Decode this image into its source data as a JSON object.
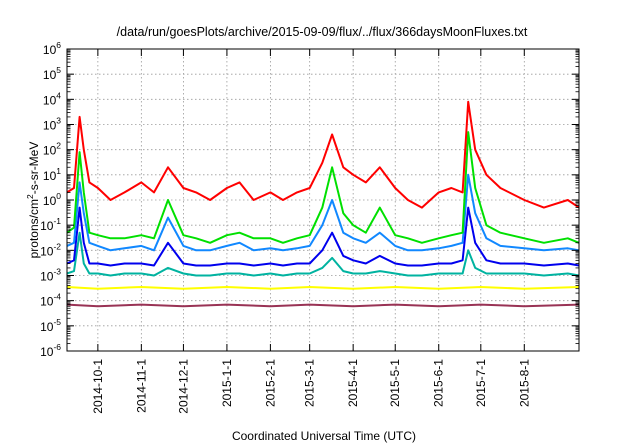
{
  "chart_data": {
    "type": "line",
    "title": "/data/run/goesPlots/archive/2015-09-09/flux/../flux/366daysMoonFluxes.txt",
    "xlabel": "Coordinated Universal Time (UTC)",
    "ylabel": {
      "base": "protons/cm",
      "sup": "2",
      "rest": "-s-sr-MeV"
    },
    "yscale": "log",
    "ylim": [
      1e-06,
      1000000.0
    ],
    "xlim": [
      "2014-09-09",
      "2015-09-09"
    ],
    "grid": true,
    "legend": "none",
    "y_ticks": [
      {
        "value": 1e-06,
        "base": "10",
        "exp": "-6"
      },
      {
        "value": 1e-05,
        "base": "10",
        "exp": "-5"
      },
      {
        "value": 0.0001,
        "base": "10",
        "exp": "-4"
      },
      {
        "value": 0.001,
        "base": "10",
        "exp": "-3"
      },
      {
        "value": 0.01,
        "base": "10",
        "exp": "-2"
      },
      {
        "value": 0.1,
        "base": "10",
        "exp": "-1"
      },
      {
        "value": 1,
        "base": "10",
        "exp": "0"
      },
      {
        "value": 10.0,
        "base": "10",
        "exp": "1"
      },
      {
        "value": 100.0,
        "base": "10",
        "exp": "2"
      },
      {
        "value": 1000.0,
        "base": "10",
        "exp": "3"
      },
      {
        "value": 10000.0,
        "base": "10",
        "exp": "4"
      },
      {
        "value": 100000.0,
        "base": "10",
        "exp": "5"
      },
      {
        "value": 1000000.0,
        "base": "10",
        "exp": "6"
      }
    ],
    "x_ticks": [
      "2014-10-1",
      "2014-11-1",
      "2014-12-1",
      "2015-1-1",
      "2015-2-1",
      "2015-3-1",
      "2015-4-1",
      "2015-5-1",
      "2015-6-1",
      "2015-7-1",
      "2015-8-1"
    ],
    "series": [
      {
        "color": "#ff0000",
        "x": [
          "2014-09-09",
          "2014-09-14",
          "2014-09-18",
          "2014-09-21",
          "2014-09-25",
          "2014-10-01",
          "2014-10-10",
          "2014-10-20",
          "2014-11-01",
          "2014-11-10",
          "2014-11-20",
          "2014-12-01",
          "2014-12-10",
          "2014-12-20",
          "2015-01-01",
          "2015-01-10",
          "2015-01-20",
          "2015-02-01",
          "2015-02-10",
          "2015-02-20",
          "2015-03-01",
          "2015-03-10",
          "2015-03-17",
          "2015-03-25",
          "2015-04-01",
          "2015-04-10",
          "2015-04-20",
          "2015-05-01",
          "2015-05-10",
          "2015-05-20",
          "2015-06-01",
          "2015-06-10",
          "2015-06-18",
          "2015-06-22",
          "2015-06-27",
          "2015-07-05",
          "2015-07-15",
          "2015-08-01",
          "2015-08-15",
          "2015-09-01",
          "2015-09-09"
        ],
        "y": [
          2,
          3,
          2000,
          100,
          5,
          3,
          1,
          2,
          5,
          2,
          20,
          3,
          2,
          1,
          3,
          5,
          1,
          2,
          1,
          2,
          3,
          30,
          400,
          20,
          10,
          5,
          20,
          3,
          1,
          0.5,
          2,
          3,
          2,
          8000,
          100,
          10,
          3,
          1,
          0.5,
          1,
          0.5
        ]
      },
      {
        "color": "#00e000",
        "x": [
          "2014-09-09",
          "2014-09-14",
          "2014-09-18",
          "2014-09-21",
          "2014-09-25",
          "2014-10-01",
          "2014-10-10",
          "2014-10-20",
          "2014-11-01",
          "2014-11-10",
          "2014-11-20",
          "2014-12-01",
          "2014-12-10",
          "2014-12-20",
          "2015-01-01",
          "2015-01-10",
          "2015-01-20",
          "2015-02-01",
          "2015-02-10",
          "2015-02-20",
          "2015-03-01",
          "2015-03-10",
          "2015-03-17",
          "2015-03-25",
          "2015-04-01",
          "2015-04-10",
          "2015-04-20",
          "2015-05-01",
          "2015-05-10",
          "2015-05-20",
          "2015-06-01",
          "2015-06-10",
          "2015-06-18",
          "2015-06-22",
          "2015-06-27",
          "2015-07-05",
          "2015-07-15",
          "2015-08-01",
          "2015-08-15",
          "2015-09-01",
          "2015-09-09"
        ],
        "y": [
          0.05,
          0.08,
          80,
          2,
          0.05,
          0.04,
          0.03,
          0.03,
          0.04,
          0.03,
          1,
          0.04,
          0.03,
          0.02,
          0.04,
          0.05,
          0.03,
          0.03,
          0.02,
          0.03,
          0.04,
          0.5,
          20,
          0.3,
          0.1,
          0.05,
          0.5,
          0.04,
          0.03,
          0.02,
          0.03,
          0.04,
          0.05,
          500,
          3,
          0.1,
          0.05,
          0.03,
          0.02,
          0.03,
          0.02
        ]
      },
      {
        "color": "#1188ff",
        "x": [
          "2014-09-09",
          "2014-09-14",
          "2014-09-18",
          "2014-09-21",
          "2014-09-25",
          "2014-10-01",
          "2014-10-10",
          "2014-10-20",
          "2014-11-01",
          "2014-11-10",
          "2014-11-20",
          "2014-12-01",
          "2014-12-10",
          "2014-12-20",
          "2015-01-01",
          "2015-01-10",
          "2015-01-20",
          "2015-02-01",
          "2015-02-10",
          "2015-02-20",
          "2015-03-01",
          "2015-03-10",
          "2015-03-17",
          "2015-03-25",
          "2015-04-01",
          "2015-04-10",
          "2015-04-20",
          "2015-05-01",
          "2015-05-10",
          "2015-05-20",
          "2015-06-01",
          "2015-06-10",
          "2015-06-18",
          "2015-06-22",
          "2015-06-27",
          "2015-07-05",
          "2015-07-15",
          "2015-08-01",
          "2015-08-15",
          "2015-09-01",
          "2015-09-09"
        ],
        "y": [
          0.015,
          0.02,
          5,
          0.3,
          0.02,
          0.015,
          0.01,
          0.012,
          0.015,
          0.01,
          0.2,
          0.015,
          0.01,
          0.01,
          0.015,
          0.02,
          0.01,
          0.012,
          0.01,
          0.012,
          0.015,
          0.1,
          1,
          0.05,
          0.03,
          0.02,
          0.05,
          0.015,
          0.01,
          0.01,
          0.012,
          0.015,
          0.02,
          10,
          0.3,
          0.03,
          0.015,
          0.012,
          0.01,
          0.012,
          0.01
        ]
      },
      {
        "color": "#0000ee",
        "x": [
          "2014-09-09",
          "2014-09-14",
          "2014-09-18",
          "2014-09-21",
          "2014-09-25",
          "2014-10-01",
          "2014-10-10",
          "2014-10-20",
          "2014-11-01",
          "2014-11-10",
          "2014-11-20",
          "2014-12-01",
          "2014-12-10",
          "2014-12-20",
          "2015-01-01",
          "2015-01-10",
          "2015-01-20",
          "2015-02-01",
          "2015-02-10",
          "2015-02-20",
          "2015-03-01",
          "2015-03-10",
          "2015-03-17",
          "2015-03-25",
          "2015-04-01",
          "2015-04-10",
          "2015-04-20",
          "2015-05-01",
          "2015-05-10",
          "2015-05-20",
          "2015-06-01",
          "2015-06-10",
          "2015-06-18",
          "2015-06-22",
          "2015-06-27",
          "2015-07-05",
          "2015-07-15",
          "2015-08-01",
          "2015-08-15",
          "2015-09-01",
          "2015-09-09"
        ],
        "y": [
          0.003,
          0.004,
          0.5,
          0.02,
          0.003,
          0.003,
          0.0025,
          0.003,
          0.003,
          0.0025,
          0.02,
          0.003,
          0.0025,
          0.0025,
          0.003,
          0.003,
          0.0025,
          0.003,
          0.0025,
          0.003,
          0.003,
          0.01,
          0.05,
          0.006,
          0.004,
          0.003,
          0.006,
          0.003,
          0.0025,
          0.0025,
          0.003,
          0.003,
          0.004,
          0.5,
          0.02,
          0.004,
          0.003,
          0.003,
          0.0025,
          0.003,
          0.0025
        ]
      },
      {
        "color": "#00b3a0",
        "x": [
          "2014-09-09",
          "2014-09-14",
          "2014-09-18",
          "2014-09-21",
          "2014-09-25",
          "2014-10-01",
          "2014-10-10",
          "2014-10-20",
          "2014-11-01",
          "2014-11-10",
          "2014-11-20",
          "2014-12-01",
          "2014-12-10",
          "2014-12-20",
          "2015-01-01",
          "2015-01-10",
          "2015-01-20",
          "2015-02-01",
          "2015-02-10",
          "2015-02-20",
          "2015-03-01",
          "2015-03-10",
          "2015-03-17",
          "2015-03-25",
          "2015-04-01",
          "2015-04-10",
          "2015-04-20",
          "2015-05-01",
          "2015-05-10",
          "2015-05-20",
          "2015-06-01",
          "2015-06-10",
          "2015-06-18",
          "2015-06-22",
          "2015-06-27",
          "2015-07-05",
          "2015-07-15",
          "2015-08-01",
          "2015-08-15",
          "2015-09-01",
          "2015-09-09"
        ],
        "y": [
          0.0012,
          0.0015,
          0.05,
          0.003,
          0.0012,
          0.0012,
          0.001,
          0.0012,
          0.0012,
          0.001,
          0.002,
          0.0012,
          0.001,
          0.001,
          0.0012,
          0.0012,
          0.001,
          0.0012,
          0.001,
          0.0012,
          0.0012,
          0.002,
          0.005,
          0.0015,
          0.0012,
          0.0012,
          0.0015,
          0.0012,
          0.001,
          0.001,
          0.0012,
          0.0012,
          0.0012,
          0.01,
          0.002,
          0.0012,
          0.0012,
          0.0012,
          0.001,
          0.0012,
          0.001
        ]
      },
      {
        "color": "#ffff00",
        "x": [
          "2014-09-09",
          "2014-10-01",
          "2014-11-01",
          "2014-12-01",
          "2015-01-01",
          "2015-02-01",
          "2015-03-01",
          "2015-04-01",
          "2015-05-01",
          "2015-06-01",
          "2015-07-01",
          "2015-08-01",
          "2015-09-09"
        ],
        "y": [
          0.00035,
          0.0003,
          0.00035,
          0.0003,
          0.00035,
          0.0003,
          0.00035,
          0.0003,
          0.00035,
          0.0003,
          0.00035,
          0.0003,
          0.00035
        ]
      },
      {
        "color": "#993355",
        "x": [
          "2014-09-09",
          "2014-10-01",
          "2014-11-01",
          "2014-12-01",
          "2015-01-01",
          "2015-02-01",
          "2015-03-01",
          "2015-04-01",
          "2015-05-01",
          "2015-06-01",
          "2015-07-01",
          "2015-08-01",
          "2015-09-09"
        ],
        "y": [
          7e-05,
          6e-05,
          7e-05,
          6e-05,
          7e-05,
          6e-05,
          7e-05,
          6e-05,
          7e-05,
          6e-05,
          7e-05,
          6e-05,
          7e-05
        ]
      }
    ]
  }
}
